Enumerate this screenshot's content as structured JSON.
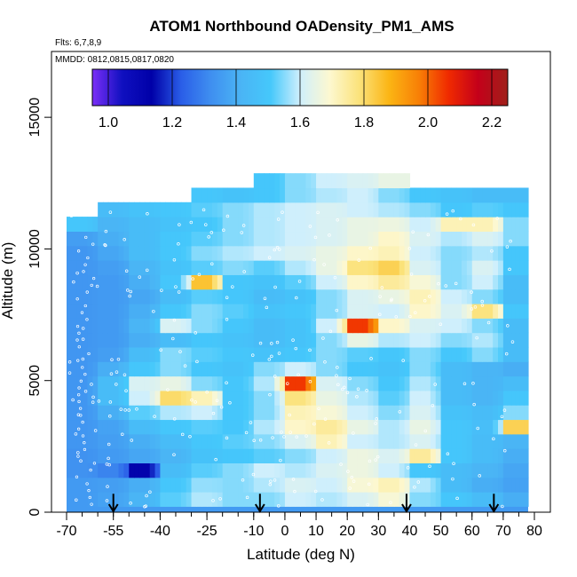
{
  "chart_data": {
    "type": "heatmap",
    "title": "ATOM1 Northbound OADensity_PM1_AMS",
    "flights_label": "Flts: 6,7,8,9",
    "dates_label": "MMDD: 0812,0815,0817,0820",
    "xlabel": "Latitude (deg N)",
    "ylabel": "Altitude (m)",
    "xlim": [
      -70,
      80
    ],
    "ylim": [
      0,
      17500
    ],
    "x_ticks": [
      -70,
      -55,
      -40,
      -25,
      -10,
      0,
      10,
      20,
      30,
      40,
      50,
      60,
      70,
      80
    ],
    "x_minor_step": 5,
    "y_ticks": [
      0,
      5000,
      10000,
      15000
    ],
    "colorbar": {
      "range": [
        0.95,
        2.25
      ],
      "ticks": [
        "1.0",
        "1.2",
        "1.4",
        "1.6",
        "1.8",
        "2.0",
        "2.2"
      ],
      "colors": [
        "#7b2ff7",
        "#1010c0",
        "#0000a8",
        "#2a5ee8",
        "#3f8ff0",
        "#4ab4f5",
        "#45c8fb",
        "#cfeffc",
        "#fdf8d0",
        "#fbe27a",
        "#fbb514",
        "#f88006",
        "#f02a00",
        "#c4001a",
        "#a0201a"
      ],
      "grid_lines": [
        1.0,
        1.2,
        1.4,
        1.6,
        1.8,
        2.0,
        2.2
      ]
    },
    "background_value": 1.35,
    "lat_bins": [
      -70,
      -60,
      -50,
      -40,
      -30,
      -20,
      -10,
      0,
      10,
      20,
      30,
      40,
      50,
      60,
      70,
      78
    ],
    "altitude_band_m": 550,
    "bands": [
      {
        "alt": 500,
        "values": [
          1.35,
          1.37,
          1.42,
          1.52,
          1.58,
          1.55,
          1.55,
          1.6,
          1.58,
          1.62,
          1.68,
          1.55,
          1.5,
          1.45,
          1.4
        ]
      },
      {
        "alt": 1050,
        "values": [
          1.35,
          1.36,
          1.4,
          1.5,
          1.56,
          1.55,
          1.58,
          1.62,
          1.6,
          1.68,
          1.72,
          1.58,
          1.45,
          1.4,
          1.37
        ]
      },
      {
        "alt": 1600,
        "values": [
          1.33,
          1.3,
          1.12,
          1.45,
          1.52,
          1.55,
          1.6,
          1.58,
          1.62,
          1.66,
          1.6,
          1.5,
          1.45,
          1.42,
          1.38
        ]
      },
      {
        "alt": 2150,
        "values": [
          1.33,
          1.35,
          1.38,
          1.42,
          1.48,
          1.5,
          1.52,
          1.55,
          1.6,
          1.66,
          1.62,
          1.75,
          1.5,
          1.45,
          1.4
        ]
      },
      {
        "alt": 2700,
        "values": [
          1.34,
          1.36,
          1.4,
          1.45,
          1.5,
          1.52,
          1.55,
          1.62,
          1.72,
          1.6,
          1.58,
          1.62,
          1.5,
          1.45,
          1.42
        ]
      },
      {
        "alt": 3250,
        "values": [
          1.34,
          1.37,
          1.45,
          1.5,
          1.52,
          1.5,
          1.58,
          1.7,
          1.75,
          1.65,
          1.58,
          1.65,
          1.5,
          1.46,
          1.82
        ]
      },
      {
        "alt": 3800,
        "values": [
          1.34,
          1.4,
          1.52,
          1.58,
          1.6,
          1.5,
          1.55,
          1.72,
          1.68,
          1.6,
          1.55,
          1.62,
          1.48,
          1.45,
          1.55
        ]
      },
      {
        "alt": 4350,
        "values": [
          1.34,
          1.45,
          1.6,
          1.8,
          1.72,
          1.5,
          1.55,
          1.78,
          1.65,
          1.58,
          1.52,
          1.6,
          1.45,
          1.42,
          1.5
        ]
      },
      {
        "alt": 4900,
        "values": [
          1.34,
          1.45,
          1.62,
          1.65,
          1.55,
          1.5,
          1.58,
          2.05,
          1.62,
          1.55,
          1.5,
          1.58,
          1.45,
          1.42,
          1.45
        ]
      },
      {
        "alt": 5450,
        "values": [
          1.34,
          1.4,
          1.5,
          1.55,
          1.5,
          1.48,
          1.55,
          1.6,
          1.55,
          1.5,
          1.48,
          1.55,
          1.45,
          1.42,
          1.4
        ]
      },
      {
        "alt": 6000,
        "values": [
          1.34,
          1.36,
          1.45,
          1.55,
          1.52,
          1.5,
          1.48,
          1.5,
          1.55,
          1.52,
          1.5,
          1.55,
          1.5,
          1.55,
          1.45
        ]
      },
      {
        "alt": 6550,
        "values": [
          1.34,
          1.35,
          1.4,
          1.45,
          1.5,
          1.48,
          1.45,
          1.48,
          1.55,
          1.65,
          1.58,
          1.6,
          1.55,
          1.58,
          1.45
        ]
      },
      {
        "alt": 7100,
        "values": [
          1.34,
          1.35,
          1.42,
          1.62,
          1.55,
          1.5,
          1.45,
          1.48,
          1.6,
          2.05,
          1.7,
          1.62,
          1.6,
          1.55,
          1.45
        ]
      },
      {
        "alt": 7650,
        "values": [
          1.34,
          1.35,
          1.4,
          1.5,
          1.55,
          1.52,
          1.48,
          1.5,
          1.55,
          1.62,
          1.6,
          1.7,
          1.62,
          1.78,
          1.5
        ]
      },
      {
        "alt": 8200,
        "values": [
          1.34,
          1.35,
          1.38,
          1.45,
          1.52,
          1.5,
          1.45,
          1.48,
          1.55,
          1.62,
          1.65,
          1.72,
          1.6,
          1.55,
          1.45
        ]
      },
      {
        "alt": 8750,
        "values": [
          1.34,
          1.35,
          1.4,
          1.5,
          1.85,
          1.5,
          1.48,
          1.52,
          1.6,
          1.7,
          1.75,
          1.68,
          1.55,
          1.6,
          1.45
        ]
      },
      {
        "alt": 9300,
        "values": [
          1.34,
          1.36,
          1.42,
          1.48,
          1.52,
          1.55,
          1.52,
          1.58,
          1.65,
          1.78,
          1.82,
          1.62,
          1.55,
          1.62,
          1.5
        ]
      },
      {
        "alt": 9850,
        "values": [
          1.34,
          1.38,
          1.45,
          1.5,
          1.55,
          1.58,
          1.6,
          1.62,
          1.65,
          1.7,
          1.72,
          1.6,
          1.55,
          1.58,
          1.5
        ]
      },
      {
        "alt": 10400,
        "values": [
          1.36,
          1.4,
          1.45,
          1.5,
          1.52,
          1.55,
          1.58,
          1.6,
          1.62,
          1.65,
          1.7,
          1.62,
          1.58,
          1.62,
          1.55
        ]
      },
      {
        "alt": 10950,
        "values": [
          1.5,
          1.42,
          1.45,
          1.48,
          1.5,
          1.55,
          1.58,
          1.6,
          1.62,
          1.65,
          1.66,
          1.6,
          1.72,
          1.72,
          1.55
        ]
      },
      {
        "alt": 11500,
        "values": [
          null,
          1.45,
          1.48,
          1.5,
          1.52,
          1.55,
          1.58,
          1.6,
          1.62,
          1.6,
          1.58,
          1.55,
          1.5,
          1.52,
          1.5
        ]
      },
      {
        "alt": 12050,
        "values": [
          null,
          null,
          null,
          null,
          1.5,
          1.48,
          1.5,
          1.55,
          1.58,
          1.6,
          1.55,
          1.5,
          1.48,
          1.45,
          1.45
        ]
      },
      {
        "alt": 12600,
        "values": [
          null,
          null,
          null,
          null,
          null,
          null,
          1.5,
          1.55,
          1.6,
          1.62,
          1.65,
          null,
          null,
          null,
          null
        ]
      }
    ],
    "arrows_lat": [
      -55,
      -8,
      39,
      67
    ]
  }
}
